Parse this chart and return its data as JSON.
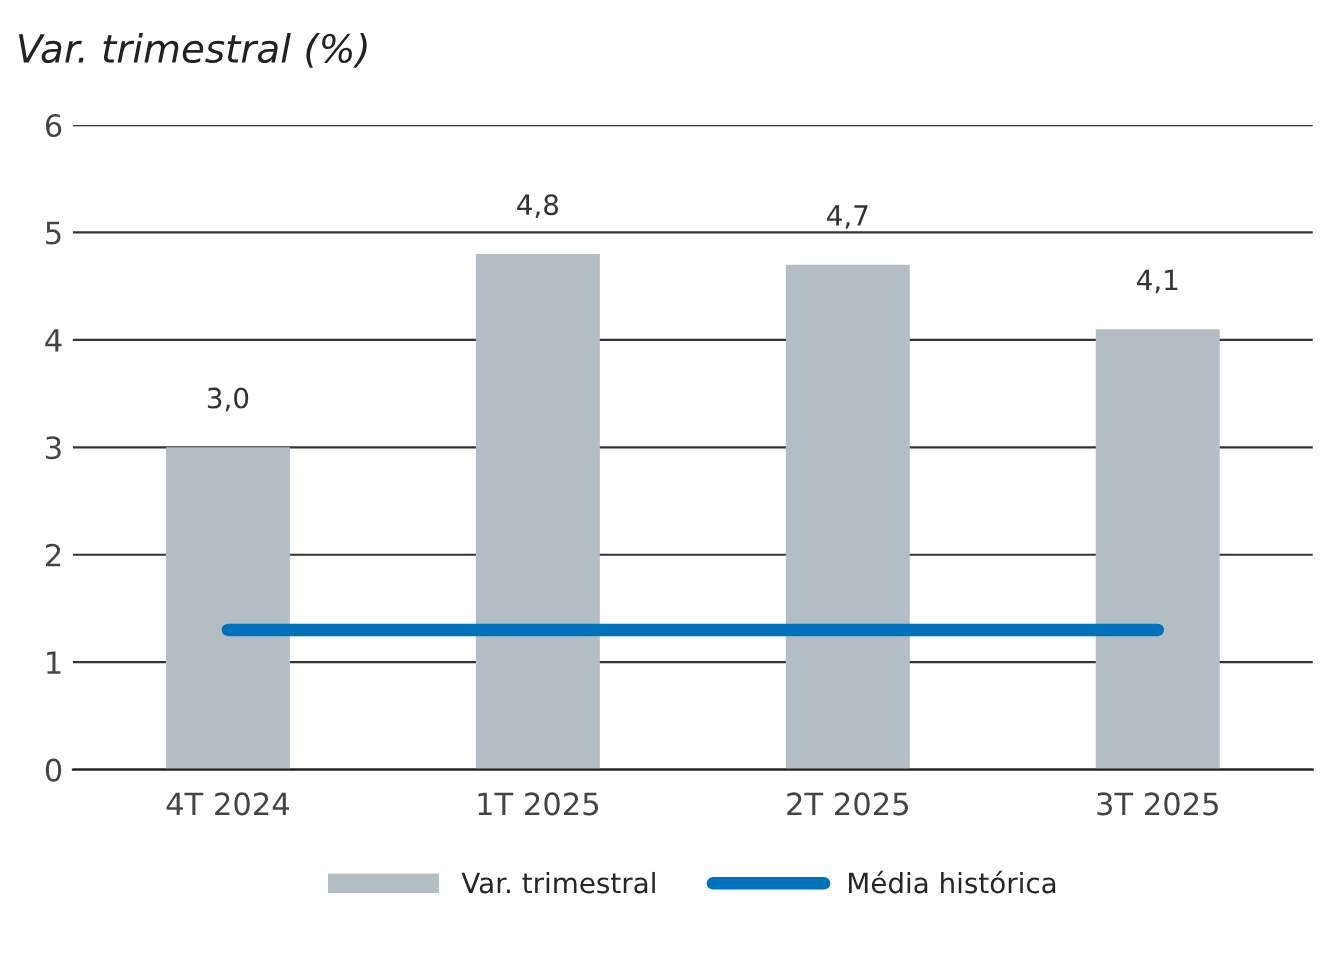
{
  "chart_data": {
    "type": "bar",
    "title": "Var. trimestral (%)",
    "categories": [
      "4T 2024",
      "1T 2025",
      "2T 2025",
      "3T 2025"
    ],
    "series": [
      {
        "name": "Var. trimestral",
        "color": "#b2bec4",
        "values": [
          3.0,
          4.8,
          4.7,
          4.1
        ],
        "value_labels": [
          "3,0",
          "4,8",
          "4,7",
          "4,1"
        ]
      },
      {
        "name": "Média histórica",
        "type": "line",
        "color": "#0072bc",
        "values": [
          1.3,
          1.3,
          1.3,
          1.3
        ]
      }
    ],
    "ylim": [
      0,
      6
    ],
    "yticks": [
      0,
      1,
      2,
      3,
      4,
      5,
      6
    ],
    "grid": "y",
    "legend": "bottom"
  }
}
